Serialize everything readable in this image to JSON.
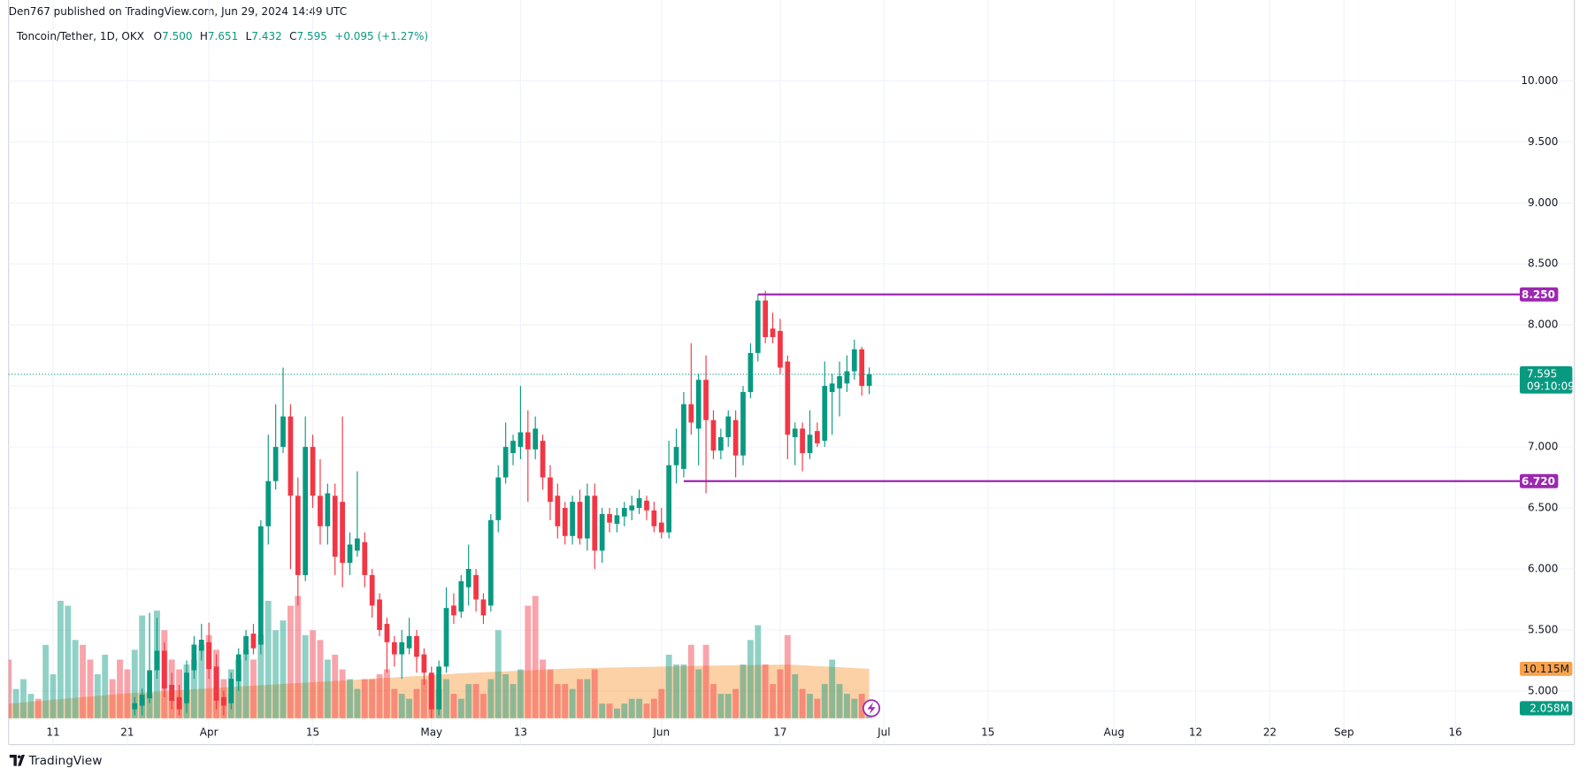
{
  "header": {
    "published": "Den767 published on TradingView.com, Jun 29, 2024 14:49 UTC"
  },
  "footer": {
    "brand": "TradingView"
  },
  "chart_data": {
    "type": "candlestick",
    "title": "Toncoin/Tether, 1D, OKX",
    "legend": {
      "ohlc": [
        {
          "letter": "O",
          "value": 7.5,
          "label": "7.500"
        },
        {
          "letter": "H",
          "value": 7.651,
          "label": "7.651"
        },
        {
          "letter": "L",
          "value": 7.432,
          "label": "7.432"
        },
        {
          "letter": "C",
          "value": 7.595,
          "label": "7.595"
        }
      ],
      "change": "+0.095 (+1.27%)"
    },
    "up_color": "#089981",
    "down_color": "#f23645",
    "grid": true,
    "xlim": [
      "2024-03-05",
      "2024-09-24"
    ],
    "xticks": [
      {
        "value": "2024-03-11",
        "label": "11"
      },
      {
        "value": "2024-03-21",
        "label": "21"
      },
      {
        "value": "2024-04-01",
        "label": "Apr"
      },
      {
        "value": "2024-04-15",
        "label": "15"
      },
      {
        "value": "2024-05-01",
        "label": "May"
      },
      {
        "value": "2024-05-13",
        "label": "13"
      },
      {
        "value": "2024-06-01",
        "label": "Jun"
      },
      {
        "value": "2024-06-17",
        "label": "17"
      },
      {
        "value": "2024-07-01",
        "label": "Jul"
      },
      {
        "value": "2024-07-15",
        "label": "15"
      },
      {
        "value": "2024-08-01",
        "label": "Aug"
      },
      {
        "value": "2024-08-12",
        "label": "12"
      },
      {
        "value": "2024-08-22",
        "label": "22"
      },
      {
        "value": "2024-09-01",
        "label": "Sep"
      },
      {
        "value": "2024-09-16",
        "label": "16"
      }
    ],
    "ylim": [
      4.776,
      10.48
    ],
    "yticks": [
      {
        "value": 5,
        "label": "5.000"
      },
      {
        "value": 5.5,
        "label": "5.500"
      },
      {
        "value": 6,
        "label": "6.000"
      },
      {
        "value": 6.5,
        "label": "6.500"
      },
      {
        "value": 7,
        "label": "7.000"
      },
      {
        "value": 7.5,
        "label": "7.500"
      },
      {
        "value": 8,
        "label": "8.000"
      },
      {
        "value": 8.5,
        "label": "8.500"
      },
      {
        "value": 9,
        "label": "9.000"
      },
      {
        "value": 9.5,
        "label": "9.500"
      },
      {
        "value": 10,
        "label": "10.000"
      }
    ],
    "x": [
      "2024-03-05",
      "2024-03-06",
      "2024-03-07",
      "2024-03-08",
      "2024-03-09",
      "2024-03-10",
      "2024-03-11",
      "2024-03-12",
      "2024-03-13",
      "2024-03-14",
      "2024-03-15",
      "2024-03-16",
      "2024-03-17",
      "2024-03-18",
      "2024-03-19",
      "2024-03-20",
      "2024-03-21",
      "2024-03-22",
      "2024-03-23",
      "2024-03-24",
      "2024-03-25",
      "2024-03-26",
      "2024-03-27",
      "2024-03-28",
      "2024-03-29",
      "2024-03-30",
      "2024-03-31",
      "2024-04-01",
      "2024-04-02",
      "2024-04-03",
      "2024-04-04",
      "2024-04-05",
      "2024-04-06",
      "2024-04-07",
      "2024-04-08",
      "2024-04-09",
      "2024-04-10",
      "2024-04-11",
      "2024-04-12",
      "2024-04-13",
      "2024-04-14",
      "2024-04-15",
      "2024-04-16",
      "2024-04-17",
      "2024-04-18",
      "2024-04-19",
      "2024-04-20",
      "2024-04-21",
      "2024-04-22",
      "2024-04-23",
      "2024-04-24",
      "2024-04-25",
      "2024-04-26",
      "2024-04-27",
      "2024-04-28",
      "2024-04-29",
      "2024-04-30",
      "2024-05-01",
      "2024-05-02",
      "2024-05-03",
      "2024-05-04",
      "2024-05-05",
      "2024-05-06",
      "2024-05-07",
      "2024-05-08",
      "2024-05-09",
      "2024-05-10",
      "2024-05-11",
      "2024-05-12",
      "2024-05-13",
      "2024-05-14",
      "2024-05-15",
      "2024-05-16",
      "2024-05-17",
      "2024-05-18",
      "2024-05-19",
      "2024-05-20",
      "2024-05-21",
      "2024-05-22",
      "2024-05-23",
      "2024-05-24",
      "2024-05-25",
      "2024-05-26",
      "2024-05-27",
      "2024-05-28",
      "2024-05-29",
      "2024-05-30",
      "2024-05-31",
      "2024-06-01",
      "2024-06-02",
      "2024-06-03",
      "2024-06-04",
      "2024-06-05",
      "2024-06-06",
      "2024-06-07",
      "2024-06-08",
      "2024-06-09",
      "2024-06-10",
      "2024-06-11",
      "2024-06-12",
      "2024-06-13",
      "2024-06-14",
      "2024-06-15",
      "2024-06-16",
      "2024-06-17",
      "2024-06-18",
      "2024-06-19",
      "2024-06-20",
      "2024-06-21",
      "2024-06-22",
      "2024-06-23",
      "2024-06-24",
      "2024-06-25",
      "2024-06-26",
      "2024-06-27",
      "2024-06-28",
      "2024-06-29"
    ],
    "open": [
      null,
      null,
      null,
      null,
      null,
      null,
      null,
      null,
      null,
      null,
      null,
      null,
      null,
      null,
      null,
      null,
      null,
      4.85,
      4.88,
      4.94,
      5.17,
      5.33,
      5.05,
      4.95,
      4.9,
      5.17,
      5.33,
      5.4,
      5.2,
      4.95,
      4.9,
      5.08,
      5.3,
      5.47,
      5.38,
      6.35,
      6.72,
      7.0,
      7.25,
      6.6,
      5.95,
      7.0,
      6.6,
      6.35,
      6.6,
      6.55,
      6.05,
      6.15,
      6.22,
      5.95,
      5.75,
      5.55,
      5.4,
      5.3,
      5.35,
      5.45,
      5.3,
      5.15,
      4.85,
      5.2,
      5.7,
      5.65,
      5.85,
      5.95,
      5.75,
      5.7,
      6.4,
      6.75,
      6.95,
      7.0,
      7.12,
      6.98,
      7.05,
      6.75,
      6.6,
      6.5,
      6.27,
      6.55,
      6.25,
      6.6,
      6.15,
      6.45,
      6.37,
      6.43,
      6.48,
      6.5,
      6.56,
      6.48,
      6.38,
      6.3,
      6.85,
      6.82,
      7.35,
      7.15,
      7.55,
      7.22,
      6.97,
      7.08,
      7.22,
      6.93,
      7.45,
      7.77,
      8.2,
      7.97,
      7.95,
      7.7,
      7.08,
      7.15,
      6.95,
      7.13,
      7.05,
      7.45,
      7.48,
      7.52,
      7.62,
      7.8,
      7.5
    ],
    "high": [
      null,
      null,
      null,
      null,
      null,
      null,
      null,
      null,
      null,
      null,
      null,
      null,
      null,
      null,
      null,
      null,
      null,
      4.95,
      5.02,
      5.64,
      5.6,
      5.4,
      5.15,
      5.05,
      5.25,
      5.45,
      5.55,
      5.56,
      5.3,
      5.0,
      5.15,
      5.35,
      5.5,
      5.55,
      6.4,
      7.1,
      7.35,
      7.65,
      7.35,
      6.75,
      7.25,
      7.1,
      6.9,
      6.7,
      6.7,
      7.25,
      6.3,
      6.8,
      6.3,
      6.0,
      5.8,
      5.6,
      5.45,
      5.5,
      5.6,
      5.5,
      5.35,
      5.2,
      5.25,
      5.85,
      5.8,
      5.95,
      6.2,
      6.0,
      5.8,
      6.45,
      6.85,
      7.2,
      7.1,
      7.5,
      7.3,
      7.25,
      7.1,
      6.85,
      6.7,
      6.55,
      6.6,
      6.65,
      6.7,
      6.7,
      6.5,
      6.5,
      6.5,
      6.55,
      6.6,
      6.65,
      6.6,
      6.55,
      6.5,
      7.05,
      7.15,
      7.45,
      7.85,
      7.6,
      7.75,
      7.3,
      7.15,
      7.3,
      7.3,
      7.5,
      7.85,
      8.25,
      8.28,
      8.1,
      8.05,
      7.75,
      7.2,
      7.2,
      7.3,
      7.2,
      7.7,
      7.6,
      7.7,
      7.75,
      7.88,
      7.82,
      7.651
    ],
    "low": [
      null,
      null,
      null,
      null,
      null,
      null,
      null,
      null,
      null,
      null,
      null,
      null,
      null,
      null,
      null,
      null,
      null,
      4.8,
      4.8,
      4.9,
      5.1,
      4.95,
      4.85,
      4.8,
      4.82,
      5.1,
      5.25,
      5.1,
      4.85,
      4.8,
      4.85,
      5.0,
      5.25,
      5.3,
      5.3,
      6.2,
      6.65,
      6.95,
      6.0,
      5.7,
      5.9,
      6.5,
      6.2,
      6.2,
      5.95,
      5.85,
      5.95,
      6.1,
      5.85,
      5.6,
      5.45,
      5.15,
      5.2,
      5.1,
      5.3,
      5.15,
      5.05,
      4.78,
      4.8,
      5.15,
      5.55,
      5.6,
      5.7,
      5.65,
      5.55,
      5.65,
      6.3,
      6.7,
      6.85,
      6.9,
      6.55,
      6.9,
      6.65,
      6.4,
      6.25,
      6.2,
      6.2,
      6.2,
      6.15,
      6.0,
      6.05,
      6.3,
      6.3,
      6.35,
      6.4,
      6.45,
      6.4,
      6.3,
      6.25,
      6.25,
      6.7,
      6.75,
      7.1,
      6.85,
      6.62,
      6.9,
      6.9,
      7.0,
      6.75,
      6.85,
      7.4,
      7.7,
      7.85,
      7.85,
      7.6,
      6.9,
      6.85,
      6.8,
      6.9,
      7.0,
      7.0,
      7.1,
      7.25,
      7.45,
      7.55,
      7.42,
      7.432
    ],
    "close": [
      null,
      null,
      null,
      null,
      null,
      null,
      null,
      null,
      null,
      null,
      null,
      null,
      null,
      null,
      null,
      null,
      null,
      4.9,
      4.97,
      5.17,
      5.33,
      5.02,
      4.92,
      4.85,
      5.15,
      5.38,
      5.42,
      5.18,
      4.92,
      4.88,
      5.1,
      5.3,
      5.45,
      5.35,
      6.35,
      6.72,
      7.0,
      7.25,
      6.6,
      5.95,
      7.0,
      6.6,
      6.35,
      6.62,
      6.1,
      6.05,
      6.2,
      6.25,
      5.95,
      5.7,
      5.5,
      5.4,
      5.3,
      5.4,
      5.45,
      5.28,
      5.15,
      4.85,
      5.2,
      5.68,
      5.62,
      5.9,
      6.0,
      5.75,
      5.62,
      6.4,
      6.75,
      7.0,
      7.05,
      7.12,
      6.98,
      7.15,
      6.75,
      6.55,
      6.35,
      6.27,
      6.55,
      6.25,
      6.6,
      6.15,
      6.45,
      6.38,
      6.44,
      6.5,
      6.52,
      6.58,
      6.48,
      6.35,
      6.3,
      6.85,
      7.0,
      7.35,
      7.2,
      7.55,
      7.22,
      6.97,
      7.08,
      7.25,
      6.93,
      7.45,
      7.77,
      8.2,
      7.9,
      7.9,
      7.65,
      7.1,
      7.15,
      6.95,
      7.1,
      7.03,
      7.5,
      7.52,
      7.58,
      7.62,
      7.8,
      7.5,
      7.595
    ],
    "volume": {
      "values": [
        12,
        6,
        8,
        5,
        4,
        15,
        9,
        24,
        23,
        16,
        15,
        12,
        9,
        13,
        8,
        12,
        10,
        14,
        21,
        5,
        22,
        18,
        12,
        10,
        11,
        12,
        15,
        17,
        14,
        8,
        10,
        12,
        14,
        12,
        17,
        24,
        18,
        20,
        23,
        25,
        17,
        18,
        16,
        12,
        13,
        10,
        8,
        6,
        8,
        8,
        9,
        10,
        6,
        5,
        4,
        6,
        8,
        9,
        6,
        8,
        5,
        4,
        7,
        7,
        5,
        8,
        18,
        9,
        7,
        10,
        23,
        25,
        12,
        10,
        7,
        7,
        6,
        8,
        8,
        10,
        3,
        3,
        2,
        3,
        4,
        4,
        3,
        4,
        6,
        13,
        11,
        11,
        15,
        10,
        15,
        7,
        5,
        5,
        6,
        11,
        16,
        19,
        11,
        7,
        10,
        17,
        9,
        6,
        5,
        4,
        7,
        12,
        7,
        5,
        4,
        5,
        2.058
      ],
      "colors": [
        "#f23645",
        "#089981",
        "#089981",
        "#089981",
        "#f23645",
        "#089981",
        "#089981",
        "#089981",
        "#089981",
        "#089981",
        "#f23645",
        "#f23645",
        "#089981",
        "#089981",
        "#f23645",
        "#f23645",
        "#f23645",
        "#089981",
        "#089981",
        "#089981",
        "#089981",
        "#f23645",
        "#f23645",
        "#f23645",
        "#089981",
        "#089981",
        "#089981",
        "#f23645",
        "#f23645",
        "#f23645",
        "#089981",
        "#089981",
        "#089981",
        "#f23645",
        "#089981",
        "#089981",
        "#089981",
        "#089981",
        "#f23645",
        "#f23645",
        "#089981",
        "#f23645",
        "#f23645",
        "#089981",
        "#f23645",
        "#f23645",
        "#089981",
        "#089981",
        "#f23645",
        "#f23645",
        "#f23645",
        "#f23645",
        "#f23645",
        "#089981",
        "#089981",
        "#f23645",
        "#f23645",
        "#f23645",
        "#089981",
        "#089981",
        "#f23645",
        "#089981",
        "#089981",
        "#f23645",
        "#f23645",
        "#089981",
        "#089981",
        "#089981",
        "#089981",
        "#089981",
        "#f23645",
        "#f23645",
        "#f23645",
        "#f23645",
        "#f23645",
        "#f23645",
        "#089981",
        "#f23645",
        "#089981",
        "#f23645",
        "#089981",
        "#f23645",
        "#089981",
        "#089981",
        "#089981",
        "#089981",
        "#f23645",
        "#f23645",
        "#f23645",
        "#089981",
        "#089981",
        "#089981",
        "#f23645",
        "#089981",
        "#f23645",
        "#f23645",
        "#089981",
        "#089981",
        "#f23645",
        "#089981",
        "#089981",
        "#089981",
        "#f23645",
        "#f23645",
        "#f23645",
        "#f23645",
        "#089981",
        "#f23645",
        "#089981",
        "#f23645",
        "#089981",
        "#089981",
        "#089981",
        "#089981",
        "#089981",
        "#f23645",
        "#089981"
      ],
      "last_label": "2.058M",
      "ma": {
        "x": [
          "2024-03-05",
          "2024-03-20",
          "2024-04-05",
          "2024-04-20",
          "2024-05-05",
          "2024-05-20",
          "2024-06-05",
          "2024-06-18",
          "2024-06-29"
        ],
        "values": [
          3,
          5,
          6.5,
          7.8,
          9.2,
          10.2,
          10.7,
          11,
          10.115
        ],
        "color": "#f57c00",
        "last_label": "10.115M"
      }
    },
    "levels": [
      {
        "value": 8.25,
        "label": "8.250",
        "start": "2024-06-14",
        "color": "#9c27b0"
      },
      {
        "value": 6.72,
        "label": "6.720",
        "start": "2024-06-04",
        "color": "#9c27b0"
      }
    ],
    "last_price": {
      "value": 7.595,
      "label": "7.595",
      "countdown": "09:10:09"
    }
  }
}
